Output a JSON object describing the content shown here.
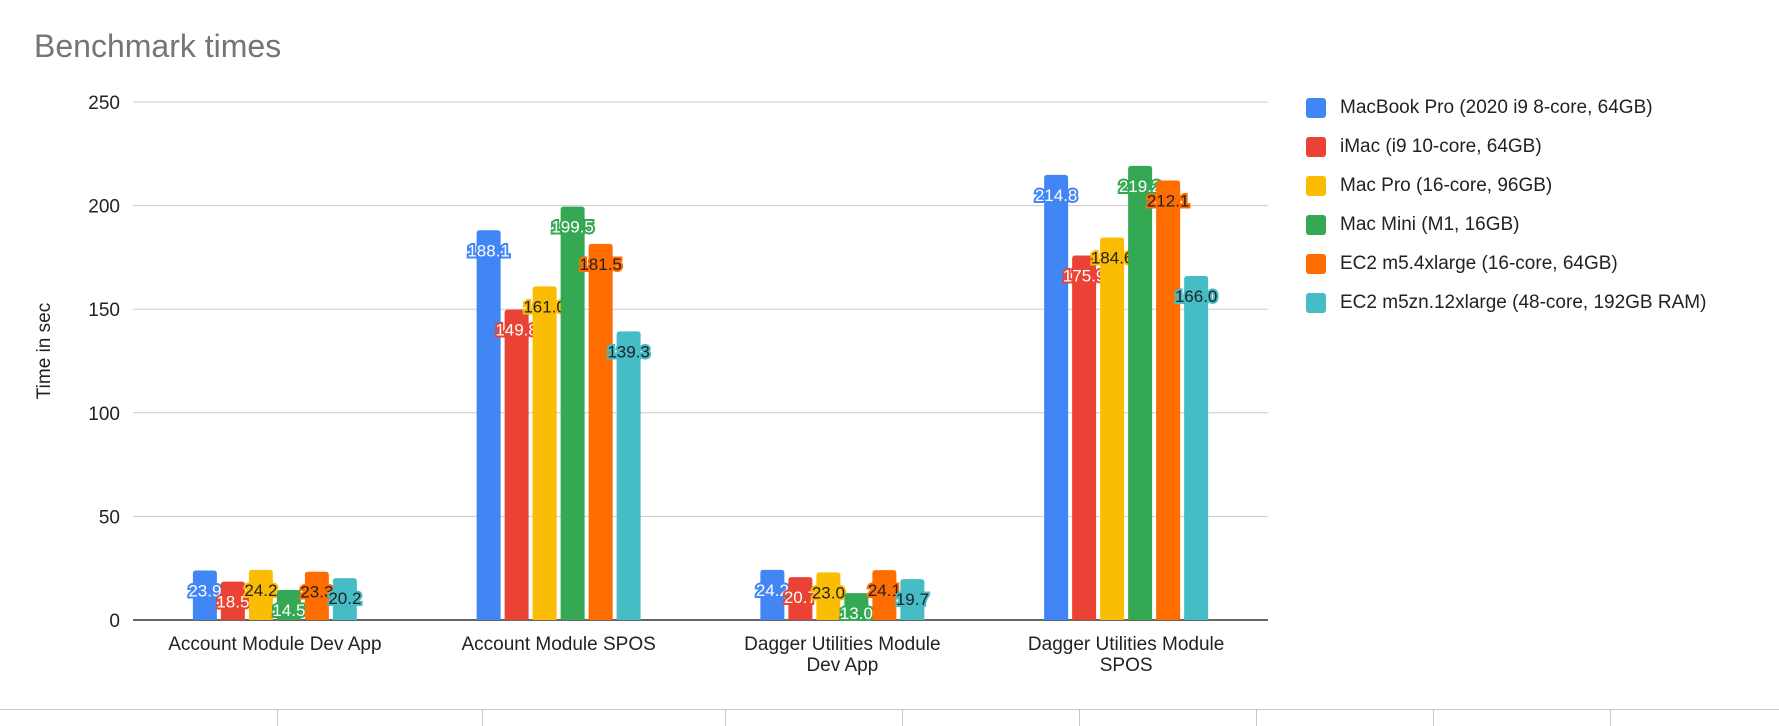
{
  "chart_data": {
    "type": "bar",
    "title": "Benchmark times",
    "xlabel": "",
    "ylabel": "Time in sec",
    "ylim": [
      0,
      250
    ],
    "yticks": [
      0,
      50,
      100,
      150,
      200,
      250
    ],
    "grid": true,
    "legend_position": "right",
    "categories": [
      [
        "Account Module Dev App"
      ],
      [
        "Account Module SPOS"
      ],
      [
        "Dagger Utilities Module",
        "Dev App"
      ],
      [
        "Dagger Utilities Module",
        "SPOS"
      ]
    ],
    "series": [
      {
        "name": "MacBook Pro (2020 i9 8-core, 64GB)",
        "color": "#4285f4",
        "labelColor": "#ffffff",
        "values": [
          23.9,
          188.1,
          24.2,
          214.8
        ],
        "labels": [
          "23.9",
          "188.1",
          "24.2",
          "214.8"
        ]
      },
      {
        "name": "iMac (i9 10-core, 64GB)",
        "color": "#ea4335",
        "labelColor": "#ffffff",
        "values": [
          18.5,
          149.8,
          20.7,
          175.9
        ],
        "labels": [
          "18.5",
          "149.8",
          "20.7",
          "175.9"
        ]
      },
      {
        "name": "Mac Pro (16-core, 96GB)",
        "color": "#fbbc04",
        "labelColor": "#222222",
        "values": [
          24.2,
          161.0,
          23.0,
          184.6
        ],
        "labels": [
          "24.2",
          "161.0",
          "23.0",
          "184.6"
        ]
      },
      {
        "name": "Mac Mini (M1, 16GB)",
        "color": "#34a853",
        "labelColor": "#ffffff",
        "values": [
          14.5,
          199.5,
          13.0,
          219.2
        ],
        "labels": [
          "14.5",
          "199.5",
          "13.0",
          "219.2"
        ]
      },
      {
        "name": "EC2 m5.4xlarge (16-core, 64GB)",
        "color": "#ff6d01",
        "labelColor": "#222222",
        "values": [
          23.3,
          181.5,
          24.1,
          212.1
        ],
        "labels": [
          "23.3",
          "181.5",
          "24.1",
          "212.1"
        ]
      },
      {
        "name": "EC2 m5zn.12xlarge (48-core, 192GB RAM)",
        "color": "#46bdc6",
        "labelColor": "#222222",
        "values": [
          20.2,
          139.3,
          19.7,
          166.0
        ],
        "labels": [
          "20.2",
          "139.3",
          "19.7",
          "166.0"
        ]
      }
    ]
  }
}
